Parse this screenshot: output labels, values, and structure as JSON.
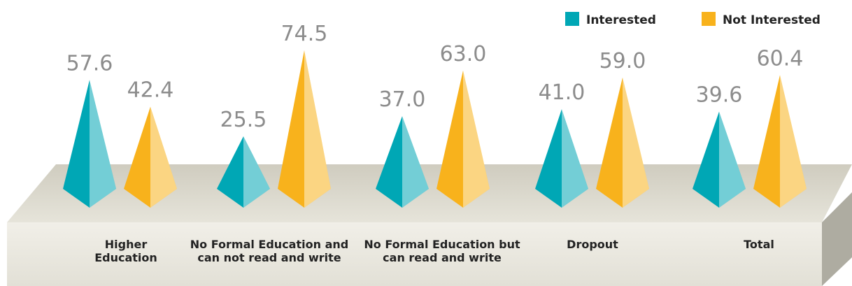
{
  "chart_data": {
    "type": "pyramid",
    "categories": [
      "Higher Education",
      "No Formal Education and can not read and write",
      "No Formal Education but can read and write",
      "Dropout",
      "Total"
    ],
    "series": [
      {
        "name": "Interested",
        "color": "#00a7b5",
        "values": [
          57.6,
          25.5,
          37.0,
          41.0,
          39.6
        ],
        "value_labels": [
          "57.6",
          "25.5",
          "37.0",
          "41.0",
          "39.6"
        ]
      },
      {
        "name": "Not Interested",
        "color": "#f8b21c",
        "values": [
          42.4,
          74.5,
          63.0,
          59.0,
          60.4
        ],
        "value_labels": [
          "42.4",
          "74.5",
          "63.0",
          "59.0",
          "60.4"
        ]
      }
    ]
  }
}
